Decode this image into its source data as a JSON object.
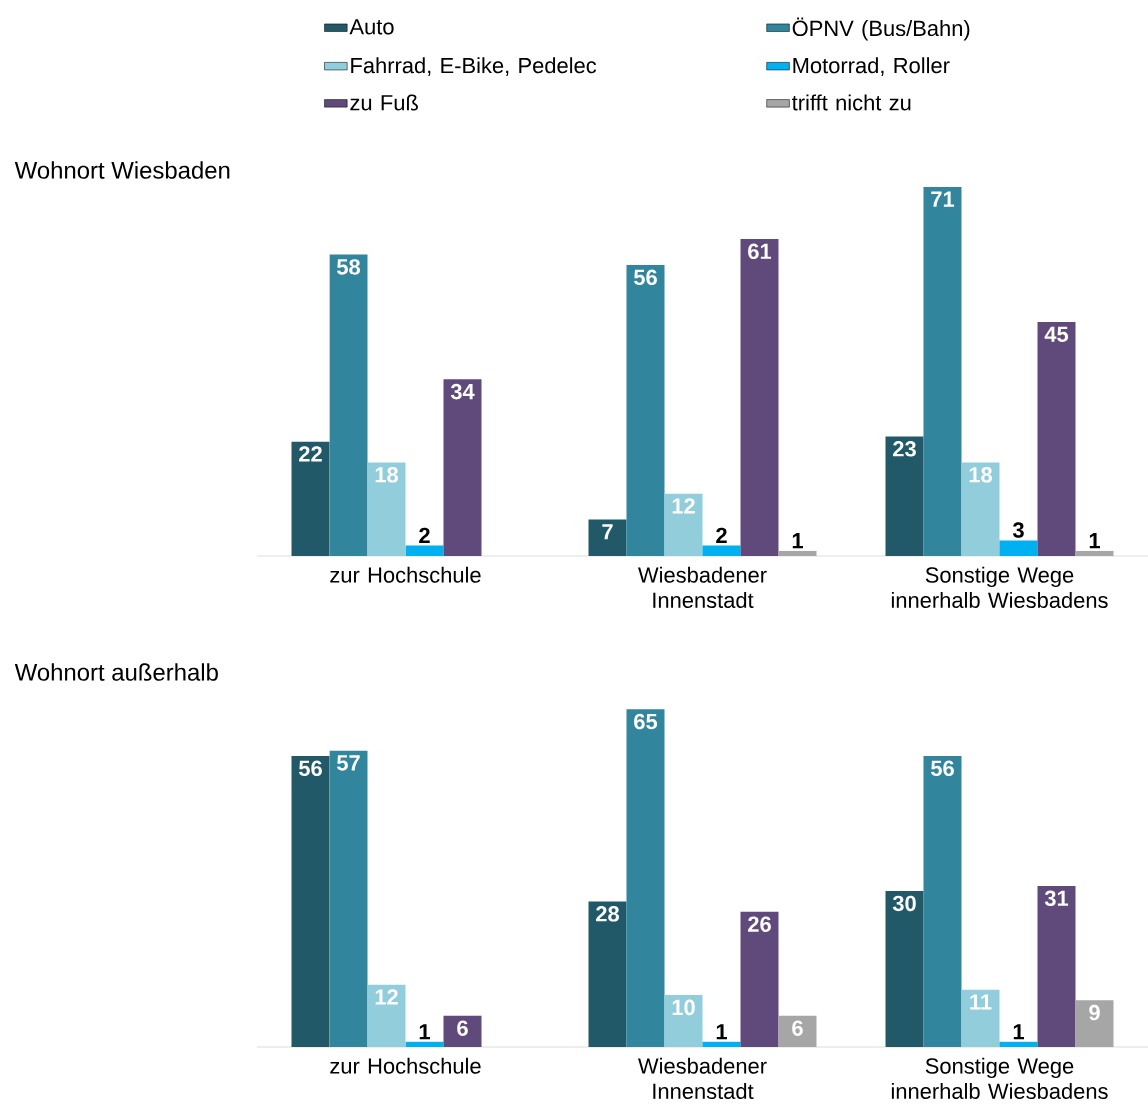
{
  "chart_data": [
    {
      "type": "bar",
      "title": "Wohnort Wiesbaden",
      "categories": [
        "zur Hochschule",
        "Wiesbadener Innenstadt",
        "Sonstige Wege innerhalb Wiesbadens"
      ],
      "legend": "top",
      "series": [
        {
          "name": "Auto",
          "color": "#215968",
          "values": [
            22,
            7,
            23
          ],
          "value_labels": [
            "22",
            "7",
            "23"
          ]
        },
        {
          "name": "ÖPNV (Bus/Bahn)",
          "color": "#31859c",
          "values": [
            58,
            56,
            71
          ],
          "value_labels": [
            "58",
            "56",
            "71"
          ]
        },
        {
          "name": "Fahrrad, E-Bike, Pedelec",
          "color": "#92cddc",
          "values": [
            18,
            12,
            18
          ],
          "value_labels": [
            "18",
            "12",
            "18"
          ]
        },
        {
          "name": "Motorrad, Roller",
          "color": "#00b0f0",
          "values": [
            2,
            2,
            3
          ],
          "value_labels": [
            "2",
            "2",
            "3"
          ]
        },
        {
          "name": "zu Fuß",
          "color": "#604a7b",
          "values": [
            34,
            61,
            45
          ],
          "value_labels": [
            "34",
            "61",
            "45"
          ]
        },
        {
          "name": "trifft nicht zu",
          "color": "#a6a6a6",
          "values": [
            null,
            1,
            1
          ],
          "value_labels": [
            null,
            "1",
            "1"
          ]
        }
      ]
    },
    {
      "type": "bar",
      "title": "Wohnort außerhalb",
      "categories": [
        "zur Hochschule",
        "Wiesbadener Innenstadt",
        "Sonstige Wege innerhalb Wiesbadens"
      ],
      "series": [
        {
          "color": "#215968",
          "values": [
            56,
            28,
            30
          ],
          "value_labels": [
            "56",
            "28",
            "30"
          ]
        },
        {
          "color": "#31859c",
          "values": [
            57,
            65,
            56
          ],
          "value_labels": [
            "57",
            "65",
            "56"
          ]
        },
        {
          "color": "#92cddc",
          "values": [
            12,
            10,
            11
          ],
          "value_labels": [
            "12",
            "10",
            "11"
          ]
        },
        {
          "color": "#00b0f0",
          "values": [
            1,
            1,
            1
          ],
          "value_labels": [
            "1",
            "1",
            "1"
          ]
        },
        {
          "color": "#604a7b",
          "values": [
            6,
            26,
            31
          ],
          "value_labels": [
            "6",
            "26",
            "31"
          ]
        },
        {
          "color": "#a6a6a6",
          "values": [
            null,
            6,
            9
          ],
          "value_labels": [
            null,
            "6",
            "9"
          ]
        }
      ]
    }
  ]
}
